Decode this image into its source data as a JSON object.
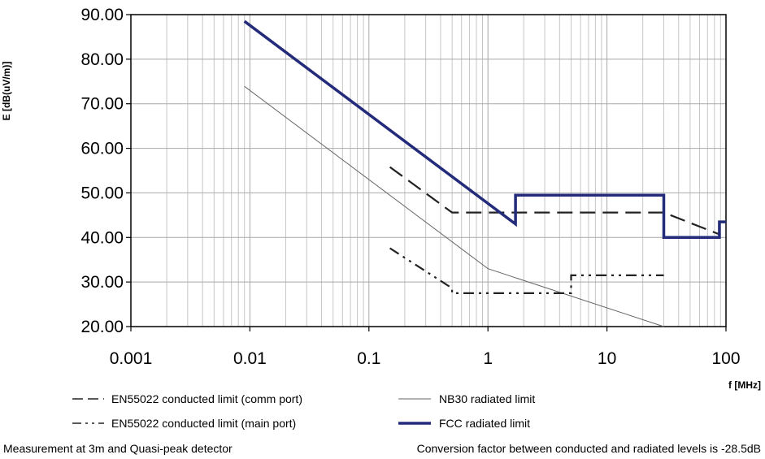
{
  "chart_data": {
    "type": "line",
    "x_scale": "log",
    "xlim": [
      0.001,
      100
    ],
    "ylim": [
      20,
      90
    ],
    "xlabel": "f [MHz]",
    "ylabel": "E [dB(uV/m)]",
    "x_ticks": [
      "0.001",
      "0.01",
      "0.1",
      "1",
      "10",
      "100"
    ],
    "y_ticks": [
      "20.00",
      "30.00",
      "40.00",
      "50.00",
      "60.00",
      "70.00",
      "80.00",
      "90.00"
    ],
    "grid": true,
    "series": [
      {
        "name": "EN55022 conducted limit (comm port)",
        "style": "dashed",
        "color": "#222222",
        "x": [
          0.15,
          0.5,
          30,
          90
        ],
        "y": [
          55.8,
          45.6,
          45.6,
          40.6
        ]
      },
      {
        "name": "NB30 radiated limit",
        "style": "solid-thin",
        "color": "#666666",
        "x": [
          0.009,
          1,
          30
        ],
        "y": [
          73.9,
          33,
          20
        ]
      },
      {
        "name": "EN55022 conducted limit (main port)",
        "style": "dash-dot",
        "color": "#222222",
        "x": [
          0.15,
          0.5,
          0.5,
          5,
          5,
          30
        ],
        "y": [
          37.6,
          28.6,
          27.5,
          27.5,
          31.5,
          31.5
        ]
      },
      {
        "name": "FCC radiated limit",
        "style": "solid-thick",
        "color": "#232b7a",
        "x": [
          0.009,
          1.705,
          1.705,
          30,
          30,
          88,
          88,
          100
        ],
        "y": [
          88.5,
          43,
          49.5,
          49.5,
          40,
          40,
          43.5,
          43.5
        ]
      }
    ]
  },
  "legend": [
    {
      "label": "EN55022 conducted limit (comm port)"
    },
    {
      "label": "NB30 radiated limit"
    },
    {
      "label": "EN55022 conducted limit (main port)"
    },
    {
      "label": "FCC radiated limit"
    }
  ],
  "notes": {
    "left": "Measurement at 3m and Quasi-peak detector",
    "right": "Conversion factor between conducted and radiated levels is -28.5dB"
  }
}
